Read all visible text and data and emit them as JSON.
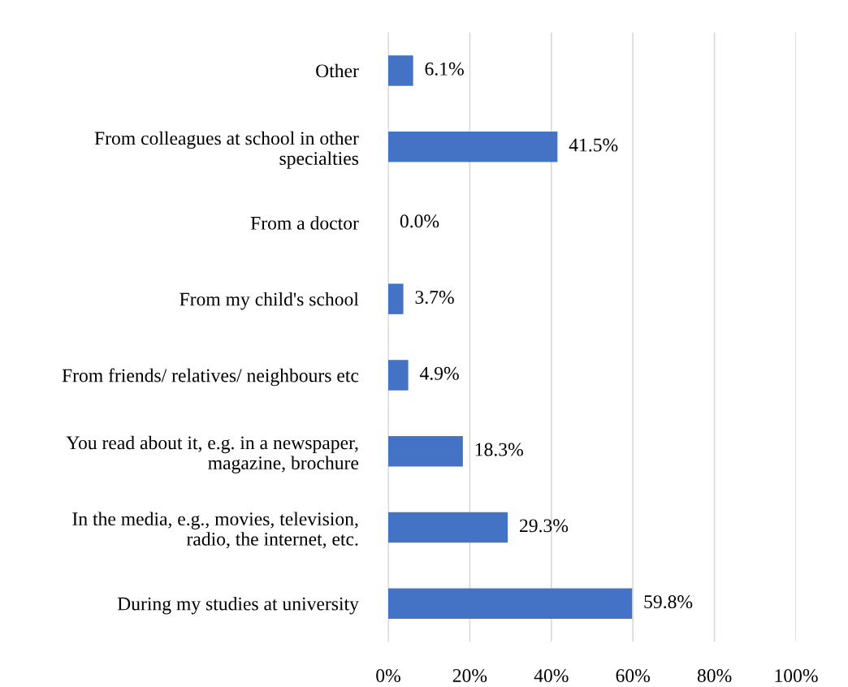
{
  "chart_data": {
    "type": "bar",
    "orientation": "horizontal",
    "categories": [
      "Other",
      "From colleagues at school in other\nspecialties",
      "From a doctor",
      "From my child's school",
      "From friends/ relatives/ neighbours etc",
      "You read about it, e.g. in a newspaper,\nmagazine, brochure",
      "In the media, e.g., movies, television,\nradio, the internet, etc.",
      "During my studies at university"
    ],
    "values": [
      6.1,
      41.5,
      0.0,
      3.7,
      4.9,
      18.3,
      29.3,
      59.8
    ],
    "value_labels": [
      "6.1%",
      "41.5%",
      "0.0%",
      "3.7%",
      "4.9%",
      "18.3%",
      "29.3%",
      "59.8%"
    ],
    "color": "#4472c4",
    "xlim": [
      0,
      100
    ],
    "xticks": [
      {
        "value": 0,
        "label": "0%"
      },
      {
        "value": 20,
        "label": "20%"
      },
      {
        "value": 40,
        "label": "40%"
      },
      {
        "value": 60,
        "label": "60%"
      },
      {
        "value": 80,
        "label": "80%"
      },
      {
        "value": 100,
        "label": "100%"
      }
    ],
    "grid": "x",
    "legend": false
  }
}
